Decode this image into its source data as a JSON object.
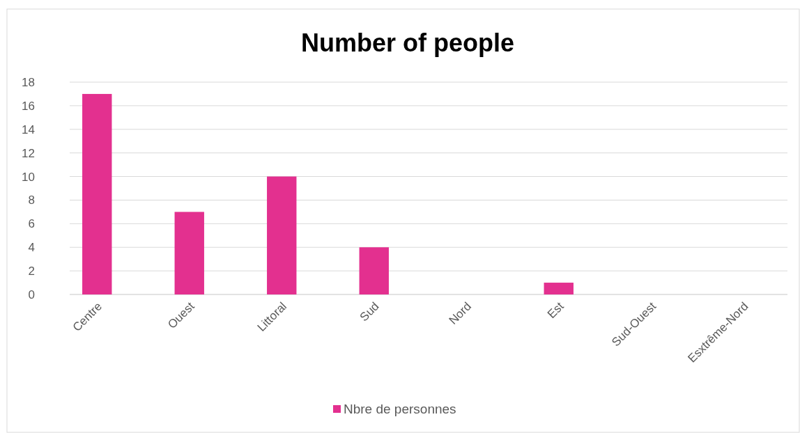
{
  "chart_data": {
    "type": "bar",
    "title": "Number of people",
    "categories": [
      "Centre",
      "Ouest",
      "Littoral",
      "Sud",
      "Nord",
      "Est",
      "Sud-Ouest",
      "Esxtrême-Nord"
    ],
    "series": [
      {
        "name": "Nbre de personnes",
        "color": "#e3308f",
        "values": [
          17,
          7,
          10,
          4,
          0,
          1,
          0,
          0
        ]
      }
    ],
    "ylim": [
      0,
      18
    ],
    "yticks": [
      0,
      2,
      4,
      6,
      8,
      10,
      12,
      14,
      16,
      18
    ],
    "grid": "y",
    "legend": "bottom"
  }
}
